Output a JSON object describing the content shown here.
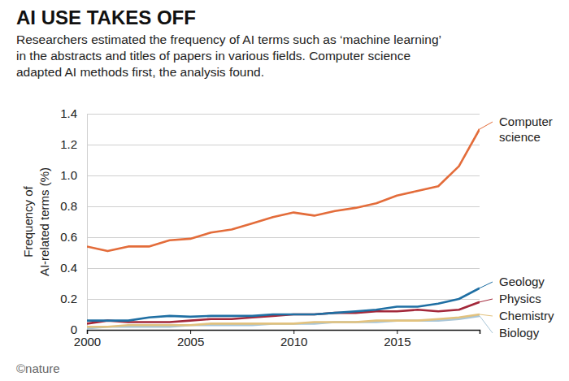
{
  "chart_data": {
    "type": "line",
    "title": "AI USE TAKES OFF",
    "subtitle": [
      "Researchers estimated the frequency of AI terms such as ‘machine learning’",
      "in the abstracts and titles of papers in various fields. Computer science",
      "adapted AI methods first, the analysis found."
    ],
    "y_label": [
      "Frequency of",
      "AI-related terms (%)"
    ],
    "credit": "©nature",
    "x": [
      2000,
      2001,
      2002,
      2003,
      2004,
      2005,
      2006,
      2007,
      2008,
      2009,
      2010,
      2011,
      2012,
      2013,
      2014,
      2015,
      2016,
      2017,
      2018,
      2019
    ],
    "xlim": [
      2000,
      2019
    ],
    "xticks": [
      2000,
      2005,
      2010,
      2015
    ],
    "ylim": [
      0,
      1.4
    ],
    "yticks": [
      0,
      0.2,
      0.4,
      0.6,
      0.8,
      {
        "value": 1,
        "label": "1.0"
      },
      1.2,
      1.4
    ],
    "grid": true,
    "series": [
      {
        "name": "Computer science",
        "color": "#e36c3a",
        "values": [
          0.54,
          0.51,
          0.54,
          0.54,
          0.58,
          0.59,
          0.63,
          0.65,
          0.69,
          0.73,
          0.76,
          0.74,
          0.77,
          0.79,
          0.82,
          0.87,
          0.9,
          0.93,
          1.06,
          1.3
        ]
      },
      {
        "name": "Geology",
        "color": "#1f6fa3",
        "values": [
          0.06,
          0.06,
          0.06,
          0.08,
          0.09,
          0.085,
          0.09,
          0.09,
          0.09,
          0.1,
          0.1,
          0.1,
          0.11,
          0.12,
          0.13,
          0.15,
          0.15,
          0.17,
          0.2,
          0.27
        ]
      },
      {
        "name": "Physics",
        "color": "#a3283a",
        "values": [
          0.04,
          0.06,
          0.05,
          0.05,
          0.05,
          0.06,
          0.07,
          0.07,
          0.08,
          0.09,
          0.1,
          0.1,
          0.11,
          0.11,
          0.12,
          0.12,
          0.13,
          0.12,
          0.13,
          0.18
        ]
      },
      {
        "name": "Chemistry",
        "color": "#e2c27e",
        "values": [
          0.02,
          0.02,
          0.03,
          0.03,
          0.03,
          0.03,
          0.04,
          0.04,
          0.04,
          0.04,
          0.04,
          0.05,
          0.05,
          0.05,
          0.06,
          0.06,
          0.06,
          0.07,
          0.08,
          0.1
        ]
      },
      {
        "name": "Biology",
        "color": "#a9c6d8",
        "values": [
          0.01,
          0.02,
          0.02,
          0.02,
          0.02,
          0.03,
          0.03,
          0.03,
          0.03,
          0.04,
          0.04,
          0.04,
          0.05,
          0.05,
          0.05,
          0.06,
          0.06,
          0.06,
          0.07,
          0.09
        ]
      }
    ]
  }
}
